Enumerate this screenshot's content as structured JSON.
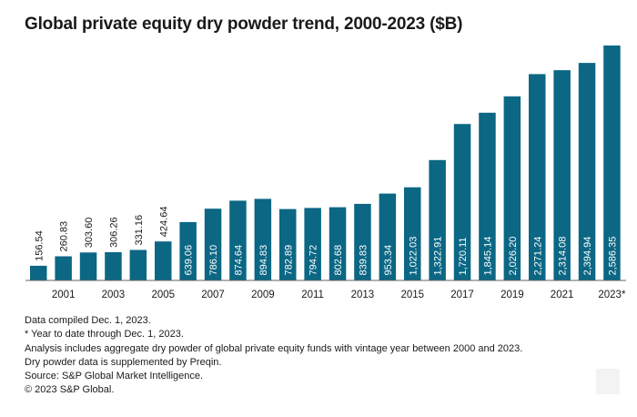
{
  "title": "Global private equity dry powder trend, 2000-2023 ($B)",
  "colors": {
    "bar": "#0b6784",
    "axis": "#666666",
    "text": "#1a1a1a"
  },
  "chart_data": {
    "type": "bar",
    "title": "Global private equity dry powder trend, 2000-2023 ($B)",
    "xlabel": "",
    "ylabel": "",
    "ylim": [
      0,
      2700
    ],
    "grid": false,
    "categories": [
      "2000",
      "2001",
      "2002",
      "2003",
      "2004",
      "2005",
      "2006",
      "2007",
      "2008",
      "2009",
      "2010",
      "2011",
      "2012",
      "2013",
      "2014",
      "2015",
      "2016",
      "2017",
      "2018",
      "2019",
      "2020",
      "2021",
      "2022",
      "2023*"
    ],
    "tick_labels": [
      "",
      "2001",
      "",
      "2003",
      "",
      "2005",
      "",
      "2007",
      "",
      "2009",
      "",
      "2011",
      "",
      "2013",
      "",
      "2015",
      "",
      "2017",
      "",
      "2019",
      "",
      "2021",
      "",
      "2023*"
    ],
    "values": [
      156.54,
      260.83,
      303.6,
      306.26,
      331.16,
      424.64,
      639.06,
      786.1,
      874.64,
      894.83,
      782.89,
      794.72,
      802.68,
      839.83,
      953.34,
      1022.03,
      1322.91,
      1720.11,
      1845.14,
      2026.2,
      2271.24,
      2314.08,
      2394.94,
      2586.35
    ],
    "labels": [
      "156.54",
      "260.83",
      "303.60",
      "306.26",
      "331.16",
      "424.64",
      "639.06",
      "786.10",
      "874.64",
      "894.83",
      "782.89",
      "794.72",
      "802.68",
      "839.83",
      "953.34",
      "1,022.03",
      "1,322.91",
      "1,720.11",
      "1,845.14",
      "2,026.20",
      "2,271.24",
      "2,314.08",
      "2,394.94",
      "2,586.35"
    ]
  },
  "notes": [
    "Data compiled Dec. 1, 2023.",
    "* Year to date through Dec. 1, 2023.",
    "Analysis includes aggregate dry powder of global private equity funds with vintage year between 2000 and 2023.",
    "Dry powder data is supplemented by Preqin.",
    "Source: S&P Global Market Intelligence.",
    "© 2023 S&P Global."
  ]
}
